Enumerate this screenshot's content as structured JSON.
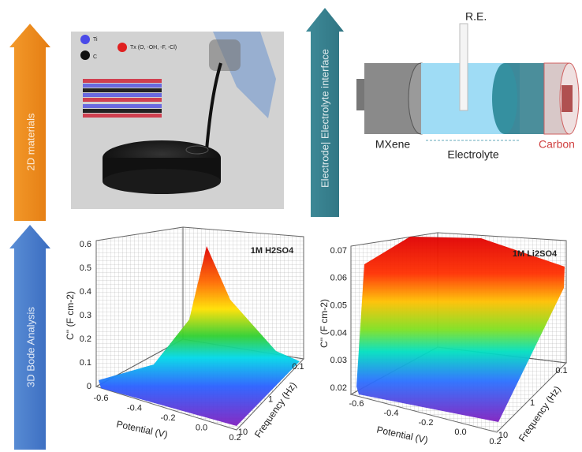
{
  "left_arrows": {
    "top": "2D materials",
    "bottom": "3D Bode Analysis"
  },
  "photo": {
    "legend": [
      "Ti",
      "C",
      "Tx (O, -OH, -F, -Cl)"
    ]
  },
  "interface_arrow": "Electrode| Electrolyte interface",
  "cell": {
    "reference": "R.E.",
    "left": "MXene",
    "middle": "Electrolyte",
    "right": "Carbon"
  },
  "plots": [
    {
      "tag": "1M H2SO4",
      "z_label": "C'' (F cm-2)",
      "z_ticks": [
        "0.6",
        "0.5",
        "0.4",
        "0.3",
        "0.2",
        "0.1",
        "0"
      ],
      "x_label": "Potential (V)",
      "x_ticks": [
        "-0.6",
        "-0.4",
        "-0.2",
        "0.0",
        "0.2"
      ],
      "y_label": "Frequency (Hz)",
      "y_ticks": [
        "10",
        "1",
        "0.1"
      ]
    },
    {
      "tag": "1M Li2SO4",
      "z_label": "C'' (F cm-2)",
      "z_ticks": [
        "0.07",
        "0.06",
        "0.05",
        "0.04",
        "0.03",
        "0.02"
      ],
      "x_label": "Potential (V)",
      "x_ticks": [
        "-0.6",
        "-0.4",
        "-0.2",
        "0.0",
        "0.2"
      ],
      "y_label": "Frequency (Hz)",
      "y_ticks": [
        "10",
        "1",
        "0.1"
      ]
    }
  ]
}
